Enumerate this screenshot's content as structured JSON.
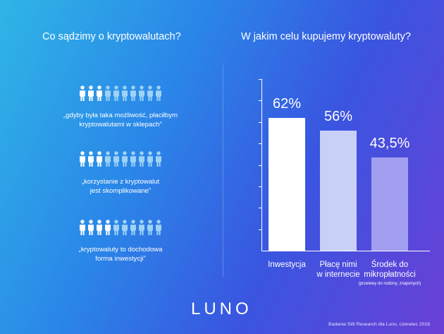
{
  "left_title": "Co sądzimy o kryptowalutach?",
  "right_title": "W jakim celu kupujemy kryptowaluty?",
  "statements": [
    {
      "lines": [
        "„gdyby była taka możliwość, płaciłbym",
        "kryptowalutami w sklepach”"
      ],
      "filled": 3,
      "total": 10
    },
    {
      "lines": [
        "„korzystanie z kryptowalut",
        "jest skomplikowane”"
      ],
      "filled": 3,
      "total": 10
    },
    {
      "lines": [
        "„kryptowaluty to dochodowa",
        "forma inwestycji”"
      ],
      "filled": 4,
      "total": 10
    }
  ],
  "chart_data": {
    "type": "bar",
    "categories": [
      "Inwestycja",
      "Płacę nimi w internecie",
      "Środek do mikropłatności"
    ],
    "values": [
      62,
      56,
      43.5
    ],
    "value_labels": [
      "62%",
      "56%",
      "43,5%"
    ],
    "category_lines": [
      [
        "Inwestycja"
      ],
      [
        "Płacę nimi",
        "w internecie"
      ],
      [
        "Środek do",
        "mikropłatności"
      ]
    ],
    "notes": [
      "",
      "",
      "(przelewy do rodziny, znajomych)"
    ],
    "ylim": [
      0,
      80
    ],
    "bar_colors": [
      "#ffffff",
      "#c9d0f7",
      "#a29ff0"
    ]
  },
  "logo": "LUNO",
  "source": "Badanie SW Research dla Luno, czerwiec 2018"
}
